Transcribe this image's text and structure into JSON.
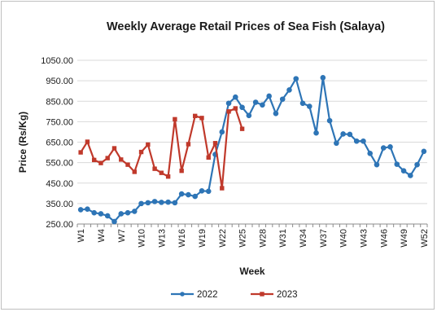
{
  "chart_data": {
    "type": "line",
    "title": "Weekly Average Retail Prices of  Sea Fish (Salaya)",
    "xlabel": "Week",
    "ylabel": "Price (Rs/Kg)",
    "ylim": [
      250,
      1050
    ],
    "yticks": [
      "250.00",
      "350.00",
      "450.00",
      "550.00",
      "650.00",
      "750.00",
      "850.00",
      "950.00",
      "1050.00"
    ],
    "x_tick_labels": [
      "W1",
      "W4",
      "W7",
      "W10",
      "W13",
      "W16",
      "W19",
      "W22",
      "W25",
      "W28",
      "W31",
      "W34",
      "W37",
      "W40",
      "W43",
      "W46",
      "W49",
      "W52"
    ],
    "grid": "horizontal",
    "legend": "bottom",
    "series": [
      {
        "name": "2022",
        "color": "#2e75b6",
        "values": [
          320,
          323,
          305,
          300,
          290,
          262,
          300,
          305,
          312,
          350,
          354,
          360,
          356,
          357,
          354,
          397,
          393,
          385,
          412,
          410,
          590,
          700,
          840,
          870,
          820,
          780,
          845,
          832,
          875,
          790,
          860,
          905,
          960,
          840,
          825,
          695,
          965,
          755,
          645,
          690,
          688,
          655,
          655,
          595,
          540,
          622,
          627,
          542,
          510,
          487,
          540,
          605
        ]
      },
      {
        "name": "2023",
        "color": "#c0392b",
        "values": [
          600,
          652,
          563,
          548,
          572,
          620,
          565,
          540,
          505,
          602,
          638,
          520,
          500,
          482,
          762,
          510,
          640,
          778,
          768,
          575,
          645,
          425,
          800,
          815,
          715
        ]
      }
    ]
  }
}
